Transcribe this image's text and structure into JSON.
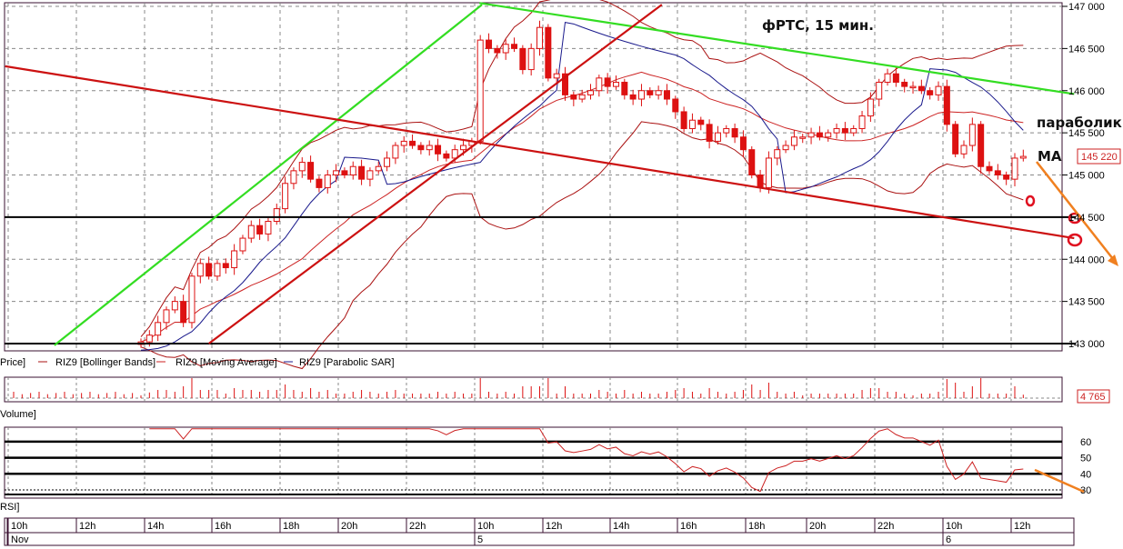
{
  "chart_data": {
    "type": "candlestick",
    "instrument": "RIZ9",
    "title": "фРТС,  15 мин.",
    "annotations": {
      "parabolic": "параболик",
      "ma": "MA"
    },
    "price_axis": {
      "ylim": [
        142950,
        147050
      ],
      "ticks": [
        "147 000",
        "146 500",
        "146 000",
        "145 500",
        "145 000",
        "144 500",
        "144 000",
        "143 500",
        "143 000"
      ],
      "tick_values": [
        147000,
        146500,
        146000,
        145500,
        145000,
        144500,
        144000,
        143500,
        143000
      ]
    },
    "last_price_label": "145 220",
    "closes": [
      143020,
      143100,
      143250,
      143400,
      143500,
      143250,
      143800,
      143950,
      143800,
      143950,
      143900,
      144100,
      144250,
      144400,
      144300,
      144450,
      144600,
      144900,
      145050,
      145150,
      144950,
      144850,
      145000,
      145050,
      145000,
      145100,
      144950,
      145050,
      145100,
      145200,
      145350,
      145400,
      145350,
      145300,
      145350,
      145250,
      145200,
      145300,
      145350,
      145400,
      146600,
      146500,
      146450,
      146550,
      146500,
      146250,
      146500,
      146750,
      146150,
      146200,
      145950,
      145900,
      145950,
      146000,
      146150,
      146050,
      146100,
      145950,
      145900,
      146000,
      145950,
      146000,
      145900,
      145750,
      145550,
      145650,
      145600,
      145400,
      145500,
      145550,
      145450,
      145300,
      145000,
      144850,
      145200,
      145300,
      145350,
      145450,
      145450,
      145500,
      145450,
      145500,
      145550,
      145500,
      145550,
      145700,
      145900,
      146100,
      146200,
      146100,
      146050,
      146050,
      146000,
      145950,
      146050,
      145600,
      145250,
      145350,
      145600,
      145100,
      145050,
      145000,
      144950,
      145200,
      145220
    ],
    "horizontal_lines": [
      144500,
      143000
    ],
    "trend_lines": [
      {
        "color": "#33dd22",
        "from": [
          -10.2,
          142980
        ],
        "to": [
          40.2,
          147020
        ]
      },
      {
        "color": "#33dd22",
        "from": [
          39.9,
          147040
        ],
        "to": [
          110,
          145960
        ]
      },
      {
        "color": "#cc1111",
        "from": [
          -16,
          146290
        ],
        "to": [
          110,
          144250
        ]
      },
      {
        "color": "#cc1111",
        "from": [
          8,
          143000
        ],
        "to": [
          61.4,
          147020
        ]
      }
    ],
    "legend": [
      "Price]",
      "RIZ9 [Bollinger Bands]",
      "RIZ9 [Moving Average]",
      "RIZ9 [Parabolic SAR]"
    ],
    "volume": {
      "label": "Volume]",
      "last_value": "4 765"
    },
    "rsi": {
      "label": "RSI]",
      "levels": [
        60,
        50,
        40,
        30
      ],
      "ticks": [
        "60",
        "50",
        "40",
        "30"
      ],
      "ylim": [
        25,
        69
      ]
    },
    "time_axis": {
      "hours": [
        "10h",
        "12h",
        "14h",
        "16h",
        "18h",
        "20h",
        "22h",
        "10h",
        "12h",
        "14h",
        "16h",
        "18h",
        "20h",
        "22h",
        "10h",
        "12h"
      ],
      "dates": [
        "Nov",
        "5",
        "6"
      ]
    },
    "colors": {
      "candle": "#dd1111",
      "bands": "#aa1111",
      "ma": "#cc2222",
      "sar": "#1a1a8c",
      "uptrend": "#33dd22",
      "arrow": "#f08020"
    }
  }
}
